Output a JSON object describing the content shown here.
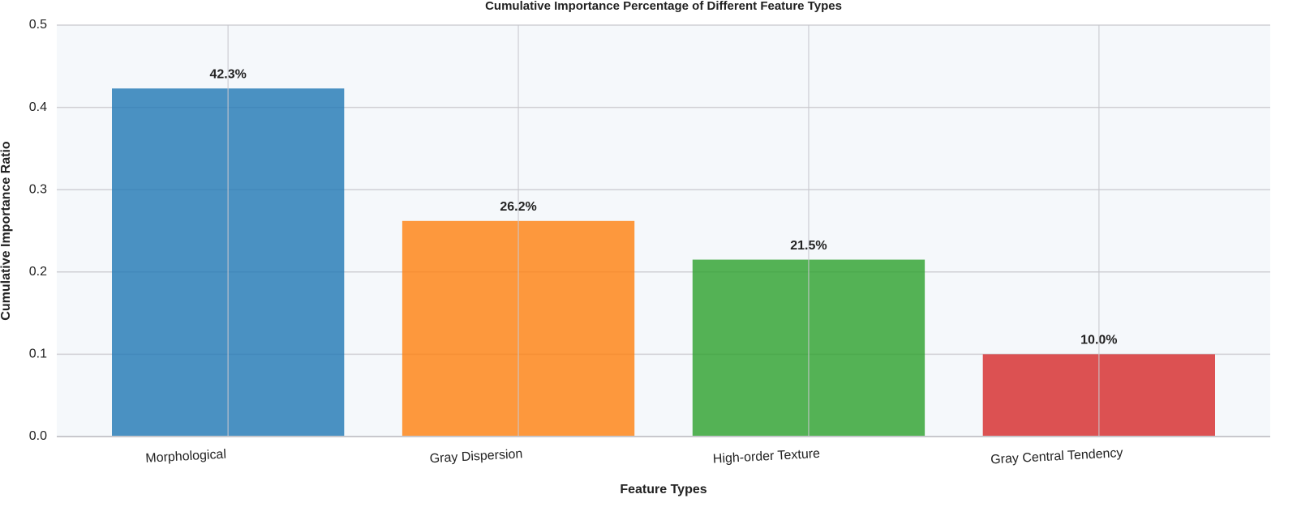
{
  "chart_data": {
    "type": "bar",
    "title": "Cumulative Importance Percentage of Different Feature Types",
    "x_label": "Feature Types",
    "y_label": "Cumulative Importance Ratio",
    "categories": [
      "Morphological",
      "Gray Dispersion",
      "High-order Texture",
      "Gray Central Tendency"
    ],
    "values": [
      0.423,
      0.262,
      0.215,
      0.1
    ],
    "value_labels": [
      "42.3%",
      "26.2%",
      "21.5%",
      "10.0%"
    ],
    "colors": [
      "#1f77b4",
      "#ff7f0e",
      "#2ca02c",
      "#d62728"
    ],
    "ylim": [
      0,
      0.5
    ],
    "yticks": [
      {
        "value": 0,
        "label": "0.0"
      },
      0.1,
      0.2,
      0.3,
      0.4,
      0.5
    ],
    "grid": true
  }
}
